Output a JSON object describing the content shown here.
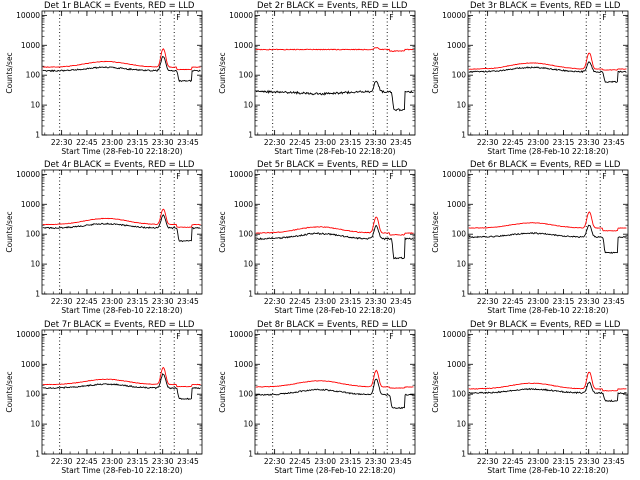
{
  "colors": {
    "events": "#000000",
    "lld": "#ff0000",
    "axes": "#000000",
    "background": "#ffffff"
  },
  "chart_data": [
    {
      "type": "line",
      "title": "Det 1r BLACK = Events, RED = LLD",
      "xlabel": "Start Time (28-Feb-10 22:18:20)",
      "ylabel": "Counts/sec",
      "x_tick_labels": [
        "22:30",
        "22:45",
        "23:00",
        "23:15",
        "23:30",
        "23:45"
      ],
      "y_tick_labels": [
        "1",
        "10",
        "100",
        "1000",
        "10000"
      ],
      "ylim": [
        1,
        14000
      ],
      "xlim_minutes": [
        0,
        95
      ],
      "vertical_markers_min": [
        10.5,
        70.2,
        78.5
      ],
      "annotation": "F",
      "series": [
        {
          "name": "Events",
          "color": "#000000",
          "base": 140,
          "bump": 1.3,
          "peak": 430,
          "dip": 65,
          "dip_range": [
            80,
            89
          ],
          "dip_shape": "drop",
          "noise": 0.05
        },
        {
          "name": "LLD",
          "color": "#ff0000",
          "base": 185,
          "bump": 1.55,
          "peak": 760,
          "dip": 155,
          "dip_range": [
            80,
            89
          ],
          "dip_shape": "slight",
          "noise": 0.02
        }
      ]
    },
    {
      "type": "line",
      "title": "Det 2r BLACK = Events, RED = LLD",
      "xlabel": "Start Time (28-Feb-10 22:18:20)",
      "ylabel": "Counts/sec",
      "x_tick_labels": [
        "22:30",
        "22:45",
        "23:00",
        "23:15",
        "23:30",
        "23:45"
      ],
      "y_tick_labels": [
        "1",
        "10",
        "100",
        "1000",
        "10000"
      ],
      "ylim": [
        1,
        14000
      ],
      "xlim_minutes": [
        0,
        95
      ],
      "vertical_markers_min": [
        10.5,
        70.2,
        78.5
      ],
      "annotation": "F",
      "series": [
        {
          "name": "Events",
          "color": "#000000",
          "base": 28,
          "bump": 0.85,
          "peak": 65,
          "dip": 7,
          "dip_range": [
            81,
            89
          ],
          "dip_shape": "drop",
          "noise": 0.08
        },
        {
          "name": "LLD",
          "color": "#ff0000",
          "base": 720,
          "bump": 1.0,
          "peak": 880,
          "dip": 640,
          "dip_range": [
            80,
            89
          ],
          "dip_shape": "slight",
          "noise": 0.03
        }
      ]
    },
    {
      "type": "line",
      "title": "Det 3r BLACK = Events, RED = LLD",
      "xlabel": "Start Time (28-Feb-10 22:18:20)",
      "ylabel": "Counts/sec",
      "x_tick_labels": [
        "22:30",
        "22:45",
        "23:00",
        "23:15",
        "23:30",
        "23:45"
      ],
      "y_tick_labels": [
        "1",
        "10",
        "100",
        "1000",
        "10000"
      ],
      "ylim": [
        1,
        14000
      ],
      "xlim_minutes": [
        0,
        95
      ],
      "vertical_markers_min": [
        10.5,
        70.2,
        78.5
      ],
      "annotation": "F",
      "series": [
        {
          "name": "Events",
          "color": "#000000",
          "base": 130,
          "bump": 1.4,
          "peak": 280,
          "dip": 60,
          "dip_range": [
            80,
            89
          ],
          "dip_shape": "drop",
          "noise": 0.05
        },
        {
          "name": "LLD",
          "color": "#ff0000",
          "base": 160,
          "bump": 1.6,
          "peak": 560,
          "dip": 150,
          "dip_range": [
            80,
            89
          ],
          "dip_shape": "slight",
          "noise": 0.02
        }
      ]
    },
    {
      "type": "line",
      "title": "Det 4r BLACK = Events, RED = LLD",
      "xlabel": "Start Time (28-Feb-10 22:18:20)",
      "ylabel": "Counts/sec",
      "x_tick_labels": [
        "22:30",
        "22:45",
        "23:00",
        "23:15",
        "23:30",
        "23:45"
      ],
      "y_tick_labels": [
        "1",
        "10",
        "100",
        "1000",
        "10000"
      ],
      "ylim": [
        1,
        14000
      ],
      "xlim_minutes": [
        0,
        95
      ],
      "vertical_markers_min": [
        10.5,
        70.2,
        78.5
      ],
      "annotation": "F",
      "series": [
        {
          "name": "Events",
          "color": "#000000",
          "base": 160,
          "bump": 1.4,
          "peak": 440,
          "dip": 60,
          "dip_range": [
            80,
            89
          ],
          "dip_shape": "drop",
          "noise": 0.05
        },
        {
          "name": "LLD",
          "color": "#ff0000",
          "base": 210,
          "bump": 1.6,
          "peak": 700,
          "dip": 170,
          "dip_range": [
            80,
            89
          ],
          "dip_shape": "slight",
          "noise": 0.02
        }
      ]
    },
    {
      "type": "line",
      "title": "Det 5r BLACK = Events, RED = LLD",
      "xlabel": "Start Time (28-Feb-10 22:18:20)",
      "ylabel": "Counts/sec",
      "x_tick_labels": [
        "22:30",
        "22:45",
        "23:00",
        "23:15",
        "23:30",
        "23:45"
      ],
      "y_tick_labels": [
        "1",
        "10",
        "100",
        "1000",
        "10000"
      ],
      "ylim": [
        1,
        14000
      ],
      "xlim_minutes": [
        0,
        95
      ],
      "vertical_markers_min": [
        10.5,
        70.2,
        78.5
      ],
      "annotation": "F",
      "series": [
        {
          "name": "Events",
          "color": "#000000",
          "base": 70,
          "bump": 1.5,
          "peak": 190,
          "dip": 16,
          "dip_range": [
            81,
            89
          ],
          "dip_shape": "drop",
          "noise": 0.06
        },
        {
          "name": "LLD",
          "color": "#ff0000",
          "base": 110,
          "bump": 1.6,
          "peak": 380,
          "dip": 95,
          "dip_range": [
            80,
            89
          ],
          "dip_shape": "slight",
          "noise": 0.03
        }
      ]
    },
    {
      "type": "line",
      "title": "Det 6r BLACK = Events, RED = LLD",
      "xlabel": "Start Time (28-Feb-10 22:18:20)",
      "ylabel": "Counts/sec",
      "x_tick_labels": [
        "22:30",
        "22:45",
        "23:00",
        "23:15",
        "23:30",
        "23:45"
      ],
      "y_tick_labels": [
        "1",
        "10",
        "100",
        "1000",
        "10000"
      ],
      "ylim": [
        1,
        14000
      ],
      "xlim_minutes": [
        0,
        95
      ],
      "vertical_markers_min": [
        10.5,
        70.2,
        78.5
      ],
      "annotation": "F",
      "series": [
        {
          "name": "Events",
          "color": "#000000",
          "base": 80,
          "bump": 1.35,
          "peak": 210,
          "dip": 24,
          "dip_range": [
            80,
            89
          ],
          "dip_shape": "drop",
          "noise": 0.05
        },
        {
          "name": "LLD",
          "color": "#ff0000",
          "base": 160,
          "bump": 1.5,
          "peak": 560,
          "dip": 130,
          "dip_range": [
            80,
            89
          ],
          "dip_shape": "slight",
          "noise": 0.02
        }
      ]
    },
    {
      "type": "line",
      "title": "Det 7r BLACK = Events, RED = LLD",
      "xlabel": "Start Time (28-Feb-10 22:18:20)",
      "ylabel": "Counts/sec",
      "x_tick_labels": [
        "22:30",
        "22:45",
        "23:00",
        "23:15",
        "23:30",
        "23:45"
      ],
      "y_tick_labels": [
        "1",
        "10",
        "100",
        "1000",
        "10000"
      ],
      "ylim": [
        1,
        14000
      ],
      "xlim_minutes": [
        0,
        95
      ],
      "vertical_markers_min": [
        10.5,
        70.2,
        78.5
      ],
      "annotation": "F",
      "series": [
        {
          "name": "Events",
          "color": "#000000",
          "base": 160,
          "bump": 1.35,
          "peak": 480,
          "dip": 70,
          "dip_range": [
            80,
            89
          ],
          "dip_shape": "drop",
          "noise": 0.05
        },
        {
          "name": "LLD",
          "color": "#ff0000",
          "base": 210,
          "bump": 1.5,
          "peak": 780,
          "dip": 180,
          "dip_range": [
            80,
            89
          ],
          "dip_shape": "slight",
          "noise": 0.02
        }
      ]
    },
    {
      "type": "line",
      "title": "Det 8r BLACK = Events, RED = LLD",
      "xlabel": "Start Time (28-Feb-10 22:18:20)",
      "ylabel": "Counts/sec",
      "x_tick_labels": [
        "22:30",
        "22:45",
        "23:00",
        "23:15",
        "23:30",
        "23:45"
      ],
      "y_tick_labels": [
        "1",
        "10",
        "100",
        "1000",
        "10000"
      ],
      "ylim": [
        1,
        14000
      ],
      "xlim_minutes": [
        0,
        95
      ],
      "vertical_markers_min": [
        10.5,
        70.2,
        78.5
      ],
      "annotation": "F",
      "series": [
        {
          "name": "Events",
          "color": "#000000",
          "base": 95,
          "bump": 1.5,
          "peak": 330,
          "dip": 35,
          "dip_range": [
            80,
            89
          ],
          "dip_shape": "drop",
          "noise": 0.05
        },
        {
          "name": "LLD",
          "color": "#ff0000",
          "base": 175,
          "bump": 1.6,
          "peak": 620,
          "dip": 160,
          "dip_range": [
            80,
            89
          ],
          "dip_shape": "slight",
          "noise": 0.02
        }
      ]
    },
    {
      "type": "line",
      "title": "Det 9r BLACK = Events, RED = LLD",
      "xlabel": "Start Time (28-Feb-10 22:18:20)",
      "ylabel": "Counts/sec",
      "x_tick_labels": [
        "22:30",
        "22:45",
        "23:00",
        "23:15",
        "23:30",
        "23:45"
      ],
      "y_tick_labels": [
        "1",
        "10",
        "100",
        "1000",
        "10000"
      ],
      "ylim": [
        1,
        14000
      ],
      "xlim_minutes": [
        0,
        95
      ],
      "vertical_markers_min": [
        10.5,
        70.2,
        78.5
      ],
      "annotation": "F",
      "series": [
        {
          "name": "Events",
          "color": "#000000",
          "base": 110,
          "bump": 1.35,
          "peak": 260,
          "dip": 60,
          "dip_range": [
            80,
            89
          ],
          "dip_shape": "drop",
          "noise": 0.05
        },
        {
          "name": "LLD",
          "color": "#ff0000",
          "base": 150,
          "bump": 1.55,
          "peak": 560,
          "dip": 130,
          "dip_range": [
            80,
            89
          ],
          "dip_shape": "slight",
          "noise": 0.02
        }
      ]
    }
  ]
}
